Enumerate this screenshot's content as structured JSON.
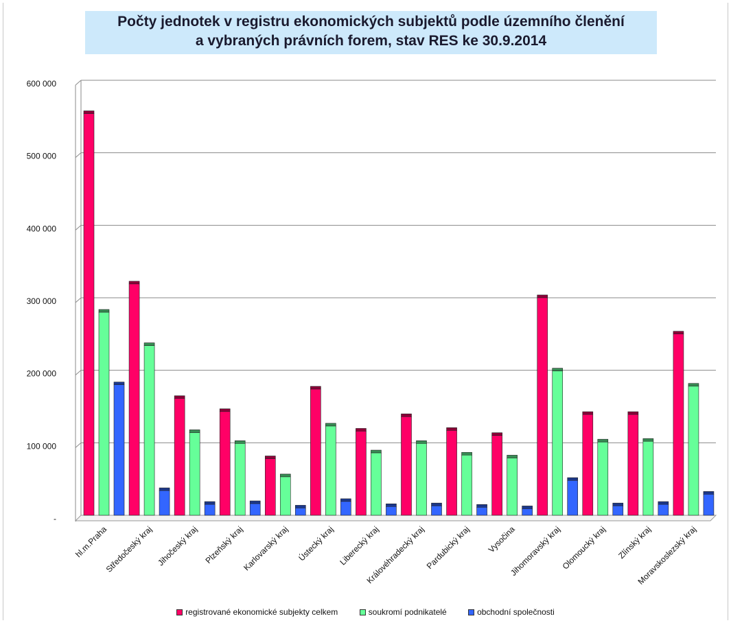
{
  "chart_data": {
    "type": "bar",
    "title": "Počty jednotek v registru ekonomických subjektů podle územního členění",
    "subtitle": "a vybraných právních forem, stav RES ke 30.9.2014",
    "categories": [
      "hl.m.Praha",
      "Středočeský kraj",
      "Jihočeský kraj",
      "Plzeňský kraj",
      "Karlovarský kraj",
      "Ústecký kraj",
      "Liberecký kraj",
      "Královéhradecký kraj",
      "Pardubický kraj",
      "Vysočina",
      "Jihomoravský kraj",
      "Olomoucký kraj",
      "Zlínský kraj",
      "Moravskoslezský kraj"
    ],
    "series": [
      {
        "name": "registrované ekonomické subjekty celkem",
        "color": "#ff0066",
        "values": [
          555000,
          320000,
          162000,
          144000,
          79000,
          175000,
          117000,
          137000,
          118000,
          111000,
          301000,
          140000,
          140000,
          251000
        ]
      },
      {
        "name": "soukromí podnikatelé",
        "color": "#66ff99",
        "values": [
          281000,
          235000,
          115000,
          100000,
          54000,
          124000,
          87000,
          100000,
          84000,
          80000,
          200000,
          102000,
          103000,
          179000
        ]
      },
      {
        "name": "obchodní společnosti",
        "color": "#3366ff",
        "values": [
          181000,
          35000,
          16000,
          17000,
          11000,
          20000,
          13000,
          14000,
          12000,
          10000,
          49000,
          14000,
          16000,
          30000
        ]
      }
    ],
    "yticks": [
      "600 000",
      "500 000",
      "400 000",
      "300 000",
      "200 000",
      "100 000",
      "-"
    ],
    "ylim": [
      0,
      600000
    ],
    "grid": true,
    "legend_position": "bottom"
  }
}
